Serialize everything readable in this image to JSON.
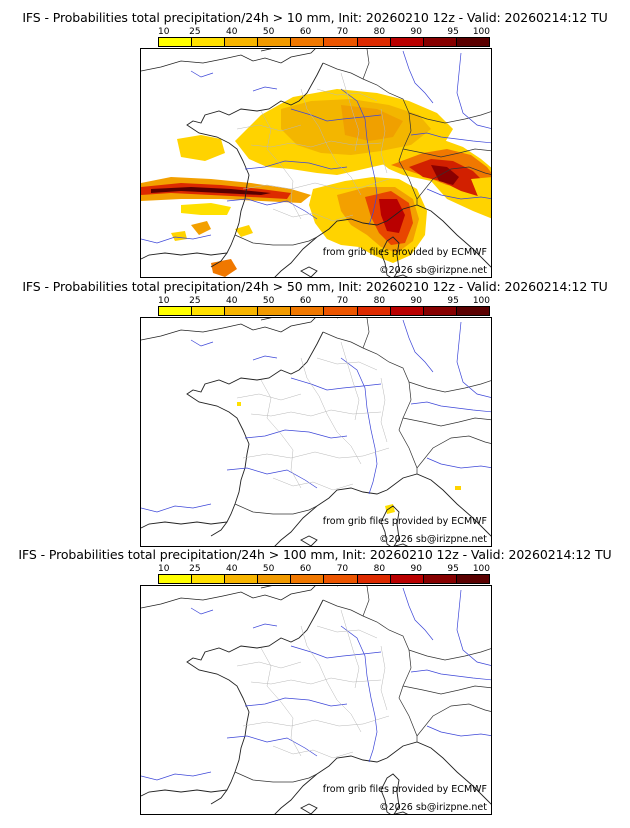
{
  "colors": {
    "scale": [
      "#ffff00",
      "#ffe000",
      "#f7b500",
      "#f19a00",
      "#f07800",
      "#ec5500",
      "#dd2a00",
      "#b90000",
      "#860000",
      "#5a0000"
    ]
  },
  "legend": {
    "ticks": [
      "10",
      "25",
      "40",
      "50",
      "60",
      "70",
      "80",
      "90",
      "95",
      "100"
    ]
  },
  "credits": {
    "source": "from grib files provided by ECMWF",
    "copyright": "©2026 sb@irizpne.net"
  },
  "panels": [
    {
      "title": "IFS - Probabilities total precipitation/24h > 10 mm, Init: 20260210 12z - Valid: 20260214:12 TU"
    },
    {
      "title": "IFS - Probabilities total precipitation/24h > 50 mm, Init: 20260210 12z - Valid: 20260214:12 TU"
    },
    {
      "title": "IFS - Probabilities total precipitation/24h > 100 mm, Init: 20260210 12z - Valid: 20260214:12 TU"
    }
  ]
}
